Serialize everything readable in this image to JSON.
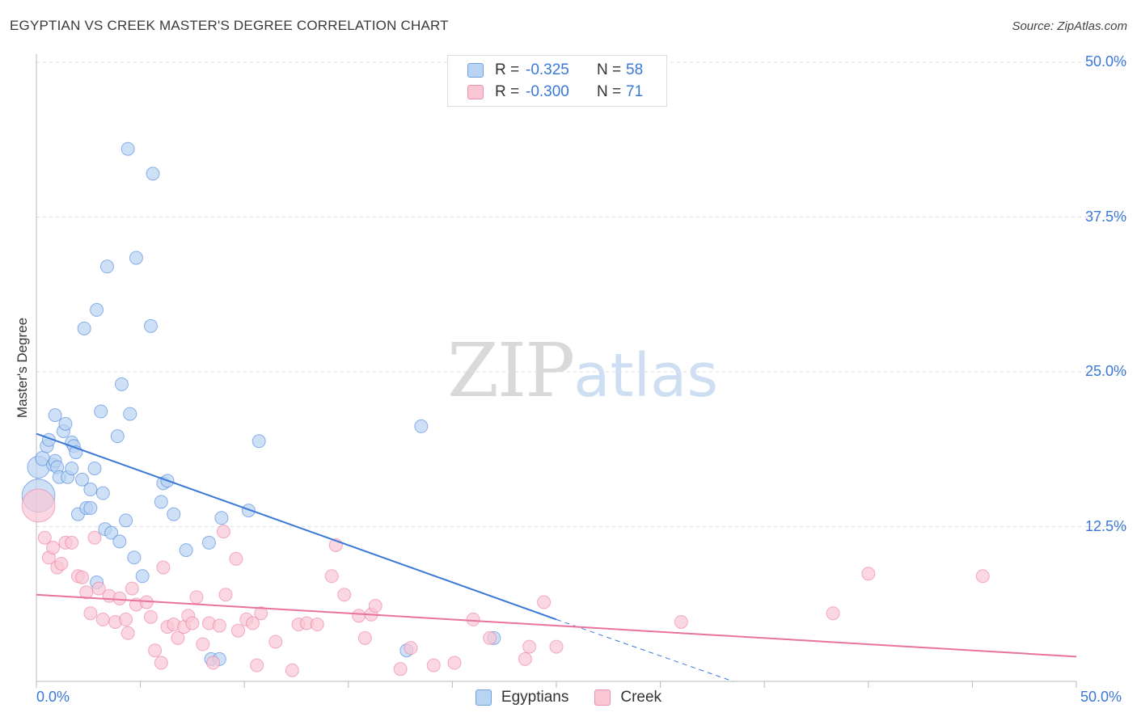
{
  "title": "EGYPTIAN VS CREEK MASTER'S DEGREE CORRELATION CHART",
  "source": "Source: ZipAtlas.com",
  "watermark": {
    "zip": "ZIP",
    "atlas": "atlas"
  },
  "legend": {
    "r_label": "R =",
    "n_label": "N =",
    "rows": [
      {
        "name": "Egyptians",
        "r": "-0.325",
        "n": "58",
        "fill": "#b9d3f2",
        "stroke": "#6fa0de"
      },
      {
        "name": "Creek",
        "r": "-0.300",
        "n": "71",
        "fill": "#f9c6d4",
        "stroke": "#ec8fad"
      }
    ]
  },
  "chart_data": {
    "type": "scatter",
    "title": "EGYPTIAN VS CREEK MASTER'S DEGREE CORRELATION CHART",
    "xlabel": "",
    "ylabel": "Master's Degree",
    "xlim": [
      0,
      50
    ],
    "ylim": [
      0,
      50
    ],
    "x_tick_labels": {
      "left": "0.0%",
      "right": "50.0%"
    },
    "y_ticks": [
      {
        "value": 12.5,
        "label": "12.5%"
      },
      {
        "value": 25,
        "label": "25.0%"
      },
      {
        "value": 37.5,
        "label": "37.5%"
      },
      {
        "value": 50,
        "label": "50.0%"
      }
    ],
    "series": [
      {
        "name": "Egyptians",
        "color": "#3a78d8",
        "fill": "#b9d3f2",
        "trend": {
          "x0": 0,
          "y0": 20.0,
          "x1": 25,
          "y1": 5.0,
          "dashed_to_x": 33.5,
          "dashed_to_y": 0
        },
        "points": [
          [
            0.1,
            17.3,
            2
          ],
          [
            0.1,
            15.0,
            3
          ],
          [
            0.3,
            18.0,
            1.3
          ],
          [
            0.5,
            19.0,
            1.2
          ],
          [
            0.6,
            19.5,
            1
          ],
          [
            0.8,
            17.5,
            1
          ],
          [
            0.9,
            17.8,
            1
          ],
          [
            0.9,
            21.5,
            1
          ],
          [
            1.0,
            17.3,
            1
          ],
          [
            1.1,
            16.5,
            1
          ],
          [
            1.3,
            20.2,
            1
          ],
          [
            1.4,
            20.8,
            1
          ],
          [
            1.5,
            16.5,
            1
          ],
          [
            1.7,
            19.3,
            1
          ],
          [
            1.7,
            17.2,
            1
          ],
          [
            1.8,
            19.0,
            1
          ],
          [
            1.9,
            18.5,
            1
          ],
          [
            2.0,
            13.5,
            1
          ],
          [
            2.2,
            16.3,
            1
          ],
          [
            2.3,
            28.5,
            1
          ],
          [
            2.4,
            14.0,
            1
          ],
          [
            2.6,
            14.0,
            1
          ],
          [
            2.6,
            15.5,
            1
          ],
          [
            2.8,
            17.2,
            1
          ],
          [
            2.9,
            30.0,
            1
          ],
          [
            2.9,
            8.0,
            1
          ],
          [
            3.1,
            21.8,
            1
          ],
          [
            3.2,
            15.2,
            1
          ],
          [
            3.3,
            12.3,
            1
          ],
          [
            3.4,
            33.5,
            1
          ],
          [
            3.6,
            12.0,
            1
          ],
          [
            3.9,
            19.8,
            1
          ],
          [
            4.0,
            11.3,
            1
          ],
          [
            4.1,
            24.0,
            1
          ],
          [
            4.3,
            13.0,
            1
          ],
          [
            4.4,
            43.0,
            1
          ],
          [
            4.5,
            21.6,
            1
          ],
          [
            4.7,
            10.0,
            1
          ],
          [
            4.8,
            34.2,
            1
          ],
          [
            5.1,
            8.5,
            1
          ],
          [
            5.5,
            28.7,
            1
          ],
          [
            5.6,
            41.0,
            1
          ],
          [
            6.0,
            14.5,
            1
          ],
          [
            6.1,
            16.0,
            1
          ],
          [
            6.3,
            16.2,
            1
          ],
          [
            6.6,
            13.5,
            1
          ],
          [
            7.2,
            10.6,
            1
          ],
          [
            8.3,
            11.2,
            1
          ],
          [
            8.4,
            1.8,
            1
          ],
          [
            8.8,
            1.8,
            1
          ],
          [
            8.9,
            13.2,
            1
          ],
          [
            10.2,
            13.8,
            1
          ],
          [
            10.7,
            19.4,
            1
          ],
          [
            17.8,
            2.5,
            1
          ],
          [
            18.5,
            20.6,
            1
          ],
          [
            22.0,
            3.5,
            1
          ]
        ]
      },
      {
        "name": "Creek",
        "color": "#e8739c",
        "fill": "#f9c6d4",
        "trend": {
          "x0": 0,
          "y0": 7.0,
          "x1": 50,
          "y1": 2.0
        },
        "points": [
          [
            0.1,
            14.2,
            3
          ],
          [
            0.4,
            11.6,
            1
          ],
          [
            0.6,
            10.0,
            1
          ],
          [
            0.8,
            10.8,
            1
          ],
          [
            1.0,
            9.2,
            1
          ],
          [
            1.2,
            9.5,
            1
          ],
          [
            1.4,
            11.2,
            1
          ],
          [
            1.7,
            11.2,
            1
          ],
          [
            2.0,
            8.5,
            1
          ],
          [
            2.2,
            8.4,
            1
          ],
          [
            2.4,
            7.2,
            1
          ],
          [
            2.6,
            5.5,
            1
          ],
          [
            2.8,
            11.6,
            1
          ],
          [
            3.0,
            7.5,
            1
          ],
          [
            3.2,
            5.0,
            1
          ],
          [
            3.5,
            6.9,
            1
          ],
          [
            3.8,
            4.8,
            1
          ],
          [
            4.0,
            6.7,
            1
          ],
          [
            4.3,
            5.0,
            1
          ],
          [
            4.4,
            3.9,
            1
          ],
          [
            4.6,
            7.5,
            1
          ],
          [
            4.8,
            6.2,
            1
          ],
          [
            5.3,
            6.4,
            1
          ],
          [
            5.5,
            5.2,
            1
          ],
          [
            5.7,
            2.5,
            1
          ],
          [
            6.0,
            1.5,
            1
          ],
          [
            6.1,
            9.2,
            1
          ],
          [
            6.3,
            4.4,
            1
          ],
          [
            6.6,
            4.6,
            1
          ],
          [
            6.8,
            3.5,
            1
          ],
          [
            7.1,
            4.4,
            1
          ],
          [
            7.3,
            5.3,
            1
          ],
          [
            7.5,
            4.7,
            1
          ],
          [
            7.7,
            6.8,
            1
          ],
          [
            8.0,
            3.0,
            1
          ],
          [
            8.3,
            4.7,
            1
          ],
          [
            8.5,
            1.5,
            1
          ],
          [
            8.8,
            4.5,
            1
          ],
          [
            9.0,
            12.1,
            1
          ],
          [
            9.1,
            7.0,
            1
          ],
          [
            9.6,
            9.9,
            1
          ],
          [
            9.7,
            4.1,
            1
          ],
          [
            10.1,
            5.0,
            1
          ],
          [
            10.4,
            4.7,
            1
          ],
          [
            10.6,
            1.3,
            1
          ],
          [
            10.8,
            5.5,
            1
          ],
          [
            11.5,
            3.2,
            1
          ],
          [
            12.3,
            0.9,
            1
          ],
          [
            12.6,
            4.6,
            1
          ],
          [
            13.0,
            4.7,
            1
          ],
          [
            13.5,
            4.6,
            1
          ],
          [
            14.2,
            8.5,
            1
          ],
          [
            14.4,
            11.0,
            1
          ],
          [
            14.8,
            7.0,
            1
          ],
          [
            15.5,
            5.3,
            1
          ],
          [
            15.8,
            3.5,
            1
          ],
          [
            16.1,
            5.4,
            1
          ],
          [
            16.3,
            6.1,
            1
          ],
          [
            17.5,
            1.0,
            1
          ],
          [
            18.0,
            2.7,
            1
          ],
          [
            19.1,
            1.3,
            1
          ],
          [
            20.1,
            1.5,
            1
          ],
          [
            21.0,
            5.0,
            1
          ],
          [
            21.8,
            3.5,
            1
          ],
          [
            23.5,
            1.8,
            1
          ],
          [
            23.7,
            2.8,
            1
          ],
          [
            24.4,
            6.4,
            1
          ],
          [
            25.0,
            2.8,
            1
          ],
          [
            31.0,
            4.8,
            1
          ],
          [
            38.3,
            5.5,
            1
          ],
          [
            40.0,
            8.7,
            1
          ],
          [
            45.5,
            8.5,
            1
          ]
        ]
      }
    ]
  }
}
